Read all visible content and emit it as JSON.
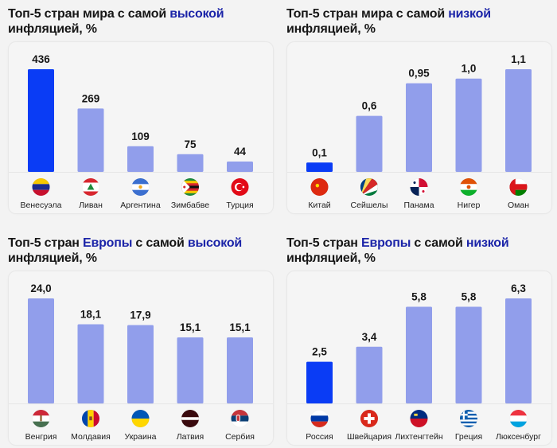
{
  "colors": {
    "highlight_bar": "#0a3cf5",
    "regular_bar": "#919eeb",
    "title_accent": "#1b24a8",
    "title_text": "#161616"
  },
  "chart_data": [
    {
      "type": "bar",
      "title_parts": [
        "Топ-5 стран мира с самой ",
        "высокой",
        " инфляцией, %"
      ],
      "title": "Топ-5 стран мира с самой высокой инфляцией, %",
      "categories": [
        "Венесуэла",
        "Ливан",
        "Аргентина",
        "Зимбабве",
        "Турция"
      ],
      "values": [
        436,
        269,
        109,
        75,
        44
      ],
      "value_labels": [
        "436",
        "269",
        "109",
        "75",
        "44"
      ],
      "highlight_index": 0,
      "flags": [
        "venezuela-flag",
        "lebanon-flag",
        "argentina-flag",
        "zimbabwe-flag",
        "turkey-flag"
      ],
      "ylim": [
        0,
        436
      ]
    },
    {
      "type": "bar",
      "title_parts": [
        "Топ-5 стран мира с самой ",
        "низкой",
        " инфляцией, %"
      ],
      "title": "Топ-5 стран мира с самой низкой инфляцией, %",
      "categories": [
        "Китай",
        "Сейшелы",
        "Панама",
        "Нигер",
        "Оман"
      ],
      "values": [
        0.1,
        0.6,
        0.95,
        1.0,
        1.1
      ],
      "value_labels": [
        "0,1",
        "0,6",
        "0,95",
        "1,0",
        "1,1"
      ],
      "highlight_index": 0,
      "flags": [
        "china-flag",
        "seychelles-flag",
        "panama-flag",
        "niger-flag",
        "oman-flag"
      ],
      "ylim": [
        0,
        1.1
      ]
    },
    {
      "type": "bar",
      "title_parts": [
        "Топ-5 стран ",
        "Европы",
        " с самой ",
        "высокой",
        " инфляцией, %"
      ],
      "title": "Топ-5 стран Европы с самой высокой инфляцией, %",
      "categories": [
        "Венгрия",
        "Молдавия",
        "Украина",
        "Латвия",
        "Сербия"
      ],
      "values": [
        24.0,
        18.1,
        17.9,
        15.1,
        15.1
      ],
      "value_labels": [
        "24,0",
        "18,1",
        "17,9",
        "15,1",
        "15,1"
      ],
      "highlight_index": -1,
      "flags": [
        "hungary-flag",
        "moldova-flag",
        "ukraine-flag",
        "latvia-flag",
        "serbia-flag"
      ],
      "ylim": [
        0,
        24.0
      ]
    },
    {
      "type": "bar",
      "title_parts": [
        "Топ-5 стран ",
        "Европы",
        " с самой ",
        "низкой",
        " инфляцией, %"
      ],
      "title": "Топ-5 стран Европы с самой низкой инфляцией, %",
      "categories": [
        "Россия",
        "Швейцария",
        "Лихтенгтейн",
        "Греция",
        "Люксенбург"
      ],
      "values": [
        2.5,
        3.4,
        5.8,
        5.8,
        6.3
      ],
      "value_labels": [
        "2,5",
        "3,4",
        "5,8",
        "5,8",
        "6,3"
      ],
      "highlight_index": 0,
      "flags": [
        "russia-flag",
        "switzerland-flag",
        "liechtenstein-flag",
        "greece-flag",
        "luxembourg-flag"
      ],
      "ylim": [
        0,
        6.3
      ]
    }
  ]
}
